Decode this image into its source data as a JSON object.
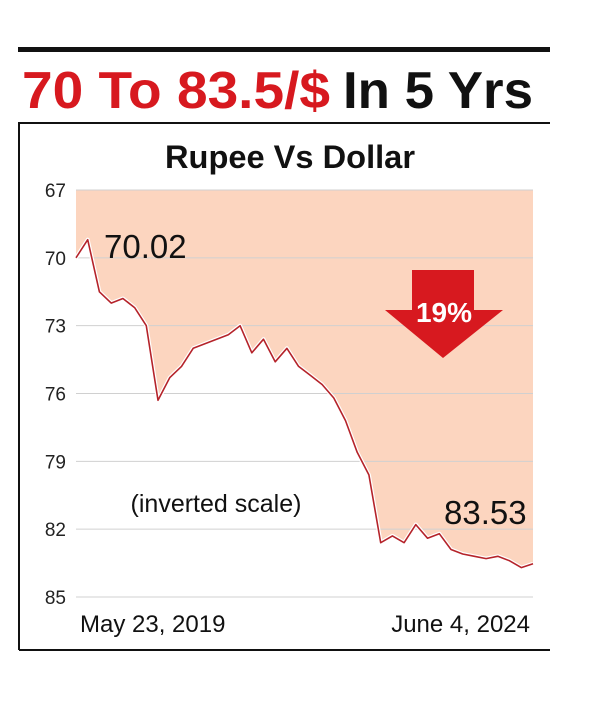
{
  "headline": {
    "highlight": "70 To 83.5/$",
    "rest": "In 5 Yrs"
  },
  "chart_data": {
    "type": "area",
    "title": "Rupee Vs Dollar",
    "categories": [
      "May 23, 2019",
      null,
      null,
      null,
      null,
      null,
      null,
      null,
      null,
      null,
      null,
      null,
      null,
      null,
      null,
      null,
      null,
      null,
      null,
      null,
      null,
      null,
      null,
      null,
      null,
      null,
      null,
      null,
      null,
      null,
      null,
      null,
      null,
      null,
      null,
      null,
      null,
      null,
      null,
      "June 4, 2024"
    ],
    "values": [
      70.0,
      69.2,
      71.5,
      72.0,
      71.8,
      72.2,
      73.0,
      76.3,
      75.3,
      74.8,
      74.0,
      73.8,
      73.6,
      73.4,
      73.0,
      74.2,
      73.6,
      74.6,
      74.0,
      74.8,
      75.2,
      75.6,
      76.2,
      77.2,
      78.6,
      79.6,
      82.6,
      82.3,
      82.6,
      81.8,
      82.4,
      82.2,
      82.9,
      83.1,
      83.2,
      83.3,
      83.2,
      83.4,
      83.7,
      83.53
    ],
    "ylim": [
      67,
      85
    ],
    "yticks": [
      67,
      70,
      73,
      76,
      79,
      82,
      85
    ],
    "inverted": true,
    "grid": true,
    "color": "#b5232a",
    "fill": "#fcd5bf",
    "annotations": {
      "start": "70.02",
      "end": "83.53",
      "change": "19%",
      "note": "(inverted scale)"
    }
  }
}
